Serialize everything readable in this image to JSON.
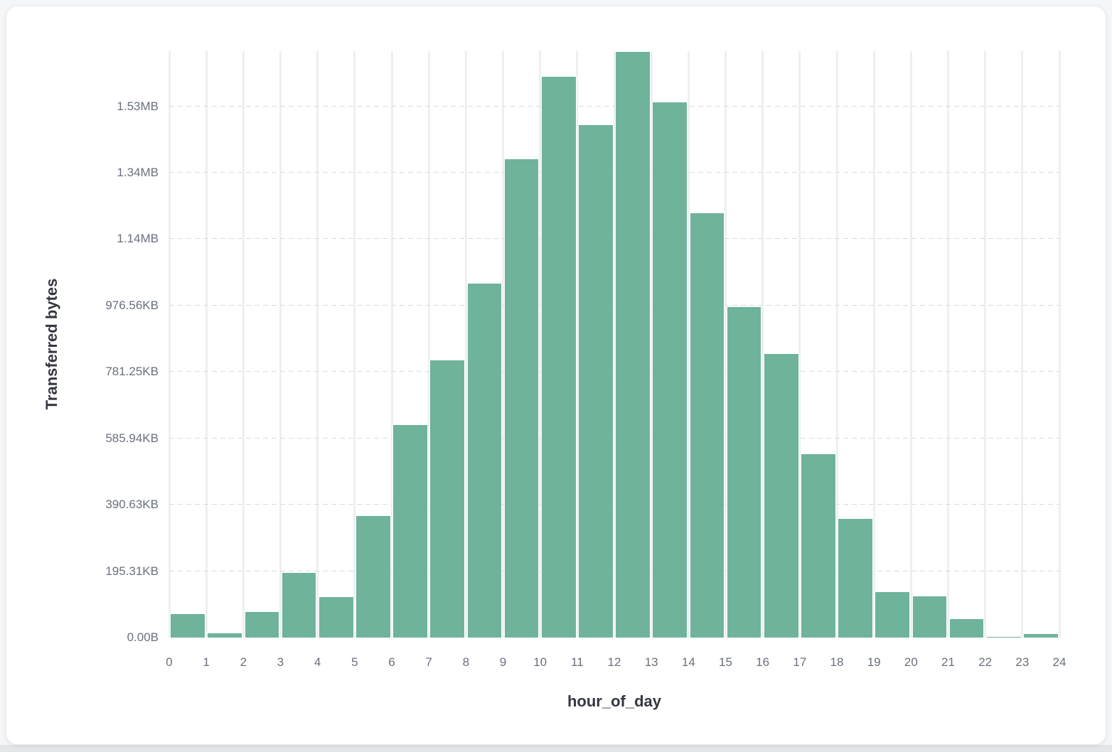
{
  "page": {
    "background": "#f5f6f8",
    "bottom_strip_color": "#e3e5e8",
    "card_background": "#ffffff"
  },
  "chart_data": {
    "type": "bar",
    "title": "",
    "xlabel": "hour_of_day",
    "ylabel": "Transferred bytes",
    "categories": [
      0,
      1,
      2,
      3,
      4,
      5,
      6,
      7,
      8,
      9,
      10,
      11,
      12,
      13,
      14,
      15,
      16,
      17,
      18,
      19,
      20,
      21,
      22,
      23
    ],
    "values": [
      72000,
      16000,
      79000,
      196000,
      125000,
      368000,
      643000,
      838000,
      1068000,
      1443000,
      1691000,
      1545000,
      1766000,
      1614000,
      1280000,
      998000,
      856000,
      555000,
      360000,
      140000,
      126000,
      58000,
      3500,
      12000
    ],
    "values_unit": "bytes",
    "x_tick_labels": [
      "0",
      "1",
      "2",
      "3",
      "4",
      "5",
      "6",
      "7",
      "8",
      "9",
      "10",
      "11",
      "12",
      "13",
      "14",
      "15",
      "16",
      "17",
      "18",
      "19",
      "20",
      "21",
      "22",
      "23",
      "24"
    ],
    "y_ticks": [
      {
        "bytes": 0,
        "label": "0.00B"
      },
      {
        "bytes": 200000,
        "label": "195.31KB"
      },
      {
        "bytes": 400000,
        "label": "390.63KB"
      },
      {
        "bytes": 600000,
        "label": "585.94KB"
      },
      {
        "bytes": 800000,
        "label": "781.25KB"
      },
      {
        "bytes": 1000000,
        "label": "976.56KB"
      },
      {
        "bytes": 1200000,
        "label": "1.14MB"
      },
      {
        "bytes": 1400000,
        "label": "1.34MB"
      },
      {
        "bytes": 1600000,
        "label": "1.53MB"
      }
    ],
    "xlim": [
      0,
      24
    ],
    "ylim": [
      0,
      1766000
    ],
    "grid": {
      "vertical_solid": true,
      "horizontal_dashed": true
    },
    "legend": "none",
    "colors": {
      "bar_fill": "#6eb39a",
      "bar_border": "#ffffff",
      "axis_title": "#343741",
      "tick_label": "#69707d",
      "vertical_grid": "#edeff3",
      "horizontal_grid": "#d7dade"
    }
  }
}
